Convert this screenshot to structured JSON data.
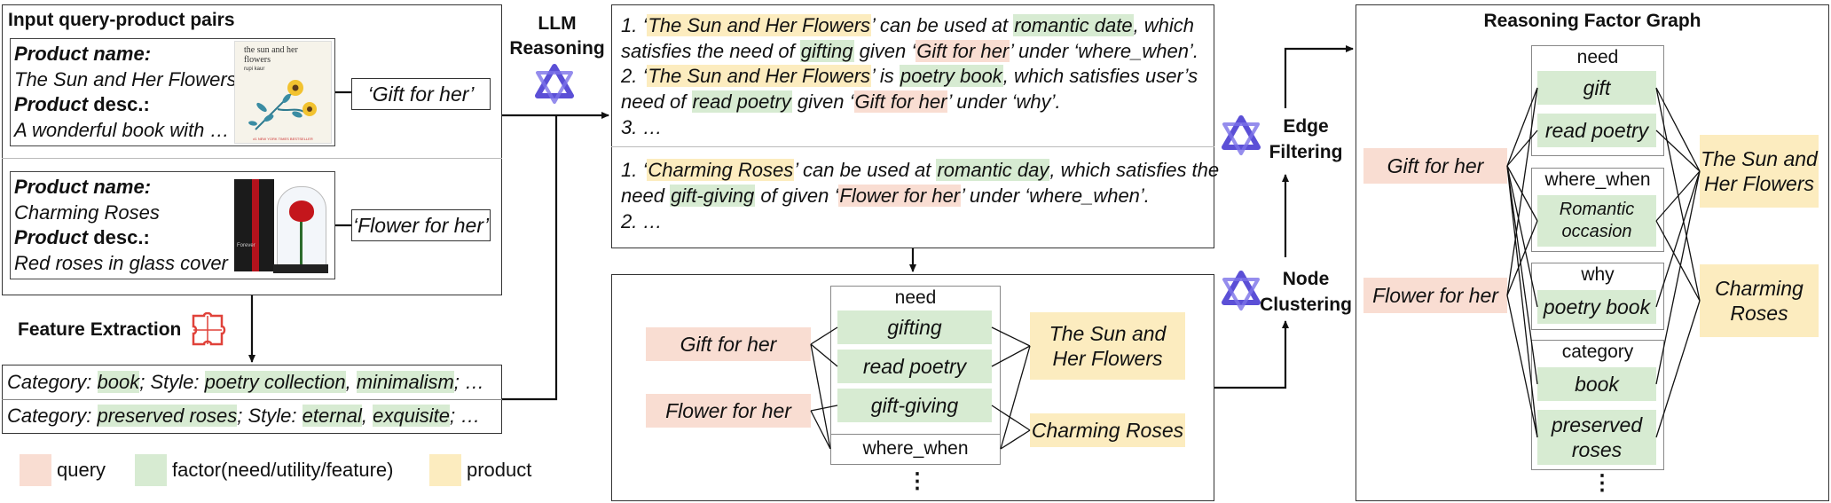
{
  "input_panel": {
    "title": "Input query-product pairs",
    "items": [
      {
        "name_label": "Product name:",
        "name_value": "The Sun and Her Flowers",
        "desc_label_a": "Product",
        "desc_label_b": " desc.:",
        "desc_value": "A wonderful book with …",
        "query": "‘Gift for her’",
        "image_title": "the sun and her flowers",
        "image_author": "rupi kaur",
        "image_footer": "#1 NEW YORK TIMES BESTSELLER"
      },
      {
        "name_label": "Product name:",
        "name_value": "Charming Roses",
        "desc_label_a": "Product",
        "desc_label_b": " desc.:",
        "desc_value": "Red roses in glass cover …",
        "query": "‘Flower for her’",
        "image_caption": "Forever"
      }
    ]
  },
  "feature_extraction": {
    "label": "Feature Extraction",
    "rows": [
      {
        "cat_label": "Category: ",
        "cat": "book",
        "style_label": "; Style: ",
        "s1": "poetry collection",
        "sep": ", ",
        "s2": "minimalism",
        "tail": "; …"
      },
      {
        "cat_label": "Category: ",
        "cat": "preserved roses",
        "style_label": "; Style: ",
        "s1": "eternal",
        "sep": ", ",
        "s2": "exquisite",
        "tail": "; …"
      }
    ]
  },
  "llm": {
    "line1": "LLM",
    "line2": "Reasoning"
  },
  "reasoning": {
    "block1": {
      "l1_a": "1. ‘",
      "l1_p": "The Sun and Her Flowers",
      "l1_b": "’ can be used at ",
      "l1_f": "romantic date",
      "l1_c": ", which",
      "l2_a": "satisfies the need of ",
      "l2_f": "gifting",
      "l2_b": " given ‘",
      "l2_q": "Gift for her",
      "l2_c": "’ under ‘where_when’.",
      "l3_a": "2. ‘",
      "l3_p": "The Sun and Her Flowers",
      "l3_b": "’ is ",
      "l3_f": "poetry book",
      "l3_c": ", which satisfies user’s",
      "l4_a": "need of ",
      "l4_f": "read poetry",
      "l4_b": " given ‘",
      "l4_q": "Gift for her",
      "l4_c": "’ under ‘why’.",
      "l5": "3. …"
    },
    "block2": {
      "l1_a": "1. ‘",
      "l1_p": "Charming Roses",
      "l1_b": "’ can be used at ",
      "l1_f": "romantic day",
      "l1_c": ", which satisfies the",
      "l2_a": "need ",
      "l2_f": "gift-giving",
      "l2_b": " of given ‘",
      "l2_q": "Flower for her",
      "l2_c": "’ under ‘where_when’.",
      "l3": "2. …"
    }
  },
  "cluster_panel": {
    "queries": [
      "Gift for her",
      "Flower for her"
    ],
    "group_label": "need",
    "factors": [
      "gifting",
      "read poetry",
      "gift-giving"
    ],
    "where_when": "where_when",
    "products": [
      "The Sun and\nHer Flowers",
      "Charming Roses"
    ],
    "ellipsis": "⋮"
  },
  "steps": {
    "edge_filtering": "Edge\nFiltering",
    "node_clustering": "Node\nClustering"
  },
  "graph": {
    "title": "Reasoning Factor Graph",
    "queries": [
      "Gift for her",
      "Flower for her"
    ],
    "groups": [
      {
        "label": "need",
        "factors": [
          "gift",
          "read poetry"
        ]
      },
      {
        "label": "where_when",
        "factors": [
          "Romantic\noccasion"
        ]
      },
      {
        "label": "why",
        "factors": [
          "poetry book"
        ]
      },
      {
        "label": "category",
        "factors": [
          "book",
          "preserved\nroses"
        ]
      }
    ],
    "products": [
      "The Sun and\nHer Flowers",
      "Charming\nRoses"
    ],
    "ellipsis": "⋮"
  },
  "legend": [
    {
      "label": "query",
      "color": "#f9ddd2"
    },
    {
      "label": "factor(need/utility/feature)",
      "color": "#d7ebd2"
    },
    {
      "label": "product",
      "color": "#fcecbf"
    }
  ]
}
